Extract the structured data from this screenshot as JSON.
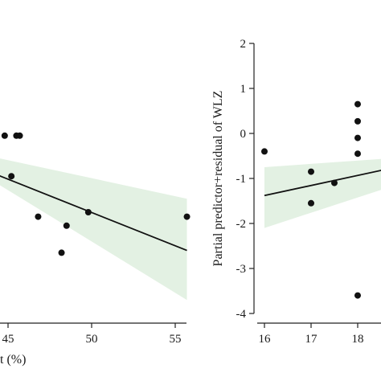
{
  "chart_data": [
    {
      "type": "scatter",
      "title": "",
      "xlabel": "t (%)",
      "ylabel": "",
      "xlim": [
        43.2,
        56
      ],
      "ylim": [
        -4.3,
        2.7
      ],
      "x_ticks": [
        45,
        50,
        55
      ],
      "x_tick_labels": [
        "45",
        "50",
        "55"
      ],
      "series": [
        {
          "x": [
            44.8,
            45.5,
            45.7,
            45.2,
            46.8,
            48.5,
            48.2,
            49.8,
            55.7
          ],
          "y": [
            -0.05,
            -0.05,
            -0.05,
            -0.95,
            -1.85,
            -2.05,
            -2.65,
            -1.75,
            -1.85
          ]
        }
      ],
      "regression": {
        "x": [
          43.2,
          55.7
        ],
        "y": [
          -0.75,
          -2.6
        ]
      },
      "ci_band": {
        "x": [
          43.2,
          55.7
        ],
        "upper": [
          -0.45,
          -1.45
        ],
        "lower": [
          -0.85,
          -3.7
        ]
      },
      "colors": {
        "band": "#e3f1e3",
        "points": "#111111",
        "line": "#111111"
      },
      "grid": false,
      "legend": "none"
    },
    {
      "type": "scatter",
      "title": "",
      "xlabel": "",
      "ylabel": "Partial predictor+residual of WLZ",
      "xlim": [
        15.95,
        19.4
      ],
      "ylim": [
        -4.3,
        2.7
      ],
      "x_ticks": [
        16,
        17,
        18
      ],
      "x_tick_labels": [
        "16",
        "17",
        "18"
      ],
      "y_ticks": [
        -4,
        -3,
        -2,
        -1,
        0,
        1,
        2
      ],
      "y_tick_labels": [
        "-4",
        "-3",
        "-2",
        "-1",
        "0",
        "1",
        "2"
      ],
      "series": [
        {
          "x": [
            16,
            17,
            17,
            17.5,
            18,
            18,
            18,
            18,
            18
          ],
          "y": [
            -0.4,
            -0.85,
            -1.55,
            -1.1,
            0.65,
            0.27,
            -0.1,
            -0.45,
            -3.6
          ]
        }
      ],
      "regression": {
        "x": [
          16,
          19.4
        ],
        "y": [
          -1.38,
          -0.62
        ]
      },
      "ci_band": {
        "x": [
          16,
          19.4
        ],
        "upper": [
          -0.75,
          -0.5
        ],
        "lower": [
          -2.1,
          -0.95
        ]
      },
      "colors": {
        "band": "#e3f1e3",
        "points": "#111111",
        "line": "#111111"
      },
      "grid": false,
      "legend": "none"
    }
  ]
}
